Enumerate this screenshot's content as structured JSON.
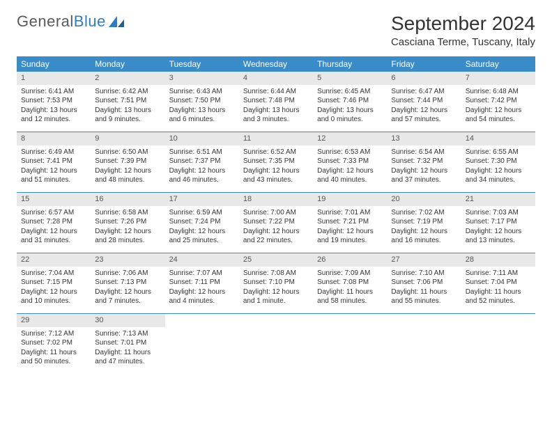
{
  "logo": {
    "text1": "General",
    "text2": "Blue"
  },
  "title": "September 2024",
  "location": "Casciana Terme, Tuscany, Italy",
  "colors": {
    "header_bg": "#3a8cc9",
    "header_text": "#ffffff",
    "daynum_bg": "#e8e8e8",
    "week_border": "#3a8cc9",
    "logo_gray": "#5a5a5a",
    "logo_blue": "#2b7ec1"
  },
  "day_names": [
    "Sunday",
    "Monday",
    "Tuesday",
    "Wednesday",
    "Thursday",
    "Friday",
    "Saturday"
  ],
  "weeks": [
    [
      {
        "n": "1",
        "sr": "Sunrise: 6:41 AM",
        "ss": "Sunset: 7:53 PM",
        "dl": "Daylight: 13 hours and 12 minutes."
      },
      {
        "n": "2",
        "sr": "Sunrise: 6:42 AM",
        "ss": "Sunset: 7:51 PM",
        "dl": "Daylight: 13 hours and 9 minutes."
      },
      {
        "n": "3",
        "sr": "Sunrise: 6:43 AM",
        "ss": "Sunset: 7:50 PM",
        "dl": "Daylight: 13 hours and 6 minutes."
      },
      {
        "n": "4",
        "sr": "Sunrise: 6:44 AM",
        "ss": "Sunset: 7:48 PM",
        "dl": "Daylight: 13 hours and 3 minutes."
      },
      {
        "n": "5",
        "sr": "Sunrise: 6:45 AM",
        "ss": "Sunset: 7:46 PM",
        "dl": "Daylight: 13 hours and 0 minutes."
      },
      {
        "n": "6",
        "sr": "Sunrise: 6:47 AM",
        "ss": "Sunset: 7:44 PM",
        "dl": "Daylight: 12 hours and 57 minutes."
      },
      {
        "n": "7",
        "sr": "Sunrise: 6:48 AM",
        "ss": "Sunset: 7:42 PM",
        "dl": "Daylight: 12 hours and 54 minutes."
      }
    ],
    [
      {
        "n": "8",
        "sr": "Sunrise: 6:49 AM",
        "ss": "Sunset: 7:41 PM",
        "dl": "Daylight: 12 hours and 51 minutes."
      },
      {
        "n": "9",
        "sr": "Sunrise: 6:50 AM",
        "ss": "Sunset: 7:39 PM",
        "dl": "Daylight: 12 hours and 48 minutes."
      },
      {
        "n": "10",
        "sr": "Sunrise: 6:51 AM",
        "ss": "Sunset: 7:37 PM",
        "dl": "Daylight: 12 hours and 46 minutes."
      },
      {
        "n": "11",
        "sr": "Sunrise: 6:52 AM",
        "ss": "Sunset: 7:35 PM",
        "dl": "Daylight: 12 hours and 43 minutes."
      },
      {
        "n": "12",
        "sr": "Sunrise: 6:53 AM",
        "ss": "Sunset: 7:33 PM",
        "dl": "Daylight: 12 hours and 40 minutes."
      },
      {
        "n": "13",
        "sr": "Sunrise: 6:54 AM",
        "ss": "Sunset: 7:32 PM",
        "dl": "Daylight: 12 hours and 37 minutes."
      },
      {
        "n": "14",
        "sr": "Sunrise: 6:55 AM",
        "ss": "Sunset: 7:30 PM",
        "dl": "Daylight: 12 hours and 34 minutes."
      }
    ],
    [
      {
        "n": "15",
        "sr": "Sunrise: 6:57 AM",
        "ss": "Sunset: 7:28 PM",
        "dl": "Daylight: 12 hours and 31 minutes."
      },
      {
        "n": "16",
        "sr": "Sunrise: 6:58 AM",
        "ss": "Sunset: 7:26 PM",
        "dl": "Daylight: 12 hours and 28 minutes."
      },
      {
        "n": "17",
        "sr": "Sunrise: 6:59 AM",
        "ss": "Sunset: 7:24 PM",
        "dl": "Daylight: 12 hours and 25 minutes."
      },
      {
        "n": "18",
        "sr": "Sunrise: 7:00 AM",
        "ss": "Sunset: 7:22 PM",
        "dl": "Daylight: 12 hours and 22 minutes."
      },
      {
        "n": "19",
        "sr": "Sunrise: 7:01 AM",
        "ss": "Sunset: 7:21 PM",
        "dl": "Daylight: 12 hours and 19 minutes."
      },
      {
        "n": "20",
        "sr": "Sunrise: 7:02 AM",
        "ss": "Sunset: 7:19 PM",
        "dl": "Daylight: 12 hours and 16 minutes."
      },
      {
        "n": "21",
        "sr": "Sunrise: 7:03 AM",
        "ss": "Sunset: 7:17 PM",
        "dl": "Daylight: 12 hours and 13 minutes."
      }
    ],
    [
      {
        "n": "22",
        "sr": "Sunrise: 7:04 AM",
        "ss": "Sunset: 7:15 PM",
        "dl": "Daylight: 12 hours and 10 minutes."
      },
      {
        "n": "23",
        "sr": "Sunrise: 7:06 AM",
        "ss": "Sunset: 7:13 PM",
        "dl": "Daylight: 12 hours and 7 minutes."
      },
      {
        "n": "24",
        "sr": "Sunrise: 7:07 AM",
        "ss": "Sunset: 7:11 PM",
        "dl": "Daylight: 12 hours and 4 minutes."
      },
      {
        "n": "25",
        "sr": "Sunrise: 7:08 AM",
        "ss": "Sunset: 7:10 PM",
        "dl": "Daylight: 12 hours and 1 minute."
      },
      {
        "n": "26",
        "sr": "Sunrise: 7:09 AM",
        "ss": "Sunset: 7:08 PM",
        "dl": "Daylight: 11 hours and 58 minutes."
      },
      {
        "n": "27",
        "sr": "Sunrise: 7:10 AM",
        "ss": "Sunset: 7:06 PM",
        "dl": "Daylight: 11 hours and 55 minutes."
      },
      {
        "n": "28",
        "sr": "Sunrise: 7:11 AM",
        "ss": "Sunset: 7:04 PM",
        "dl": "Daylight: 11 hours and 52 minutes."
      }
    ],
    [
      {
        "n": "29",
        "sr": "Sunrise: 7:12 AM",
        "ss": "Sunset: 7:02 PM",
        "dl": "Daylight: 11 hours and 50 minutes."
      },
      {
        "n": "30",
        "sr": "Sunrise: 7:13 AM",
        "ss": "Sunset: 7:01 PM",
        "dl": "Daylight: 11 hours and 47 minutes."
      },
      null,
      null,
      null,
      null,
      null
    ]
  ]
}
